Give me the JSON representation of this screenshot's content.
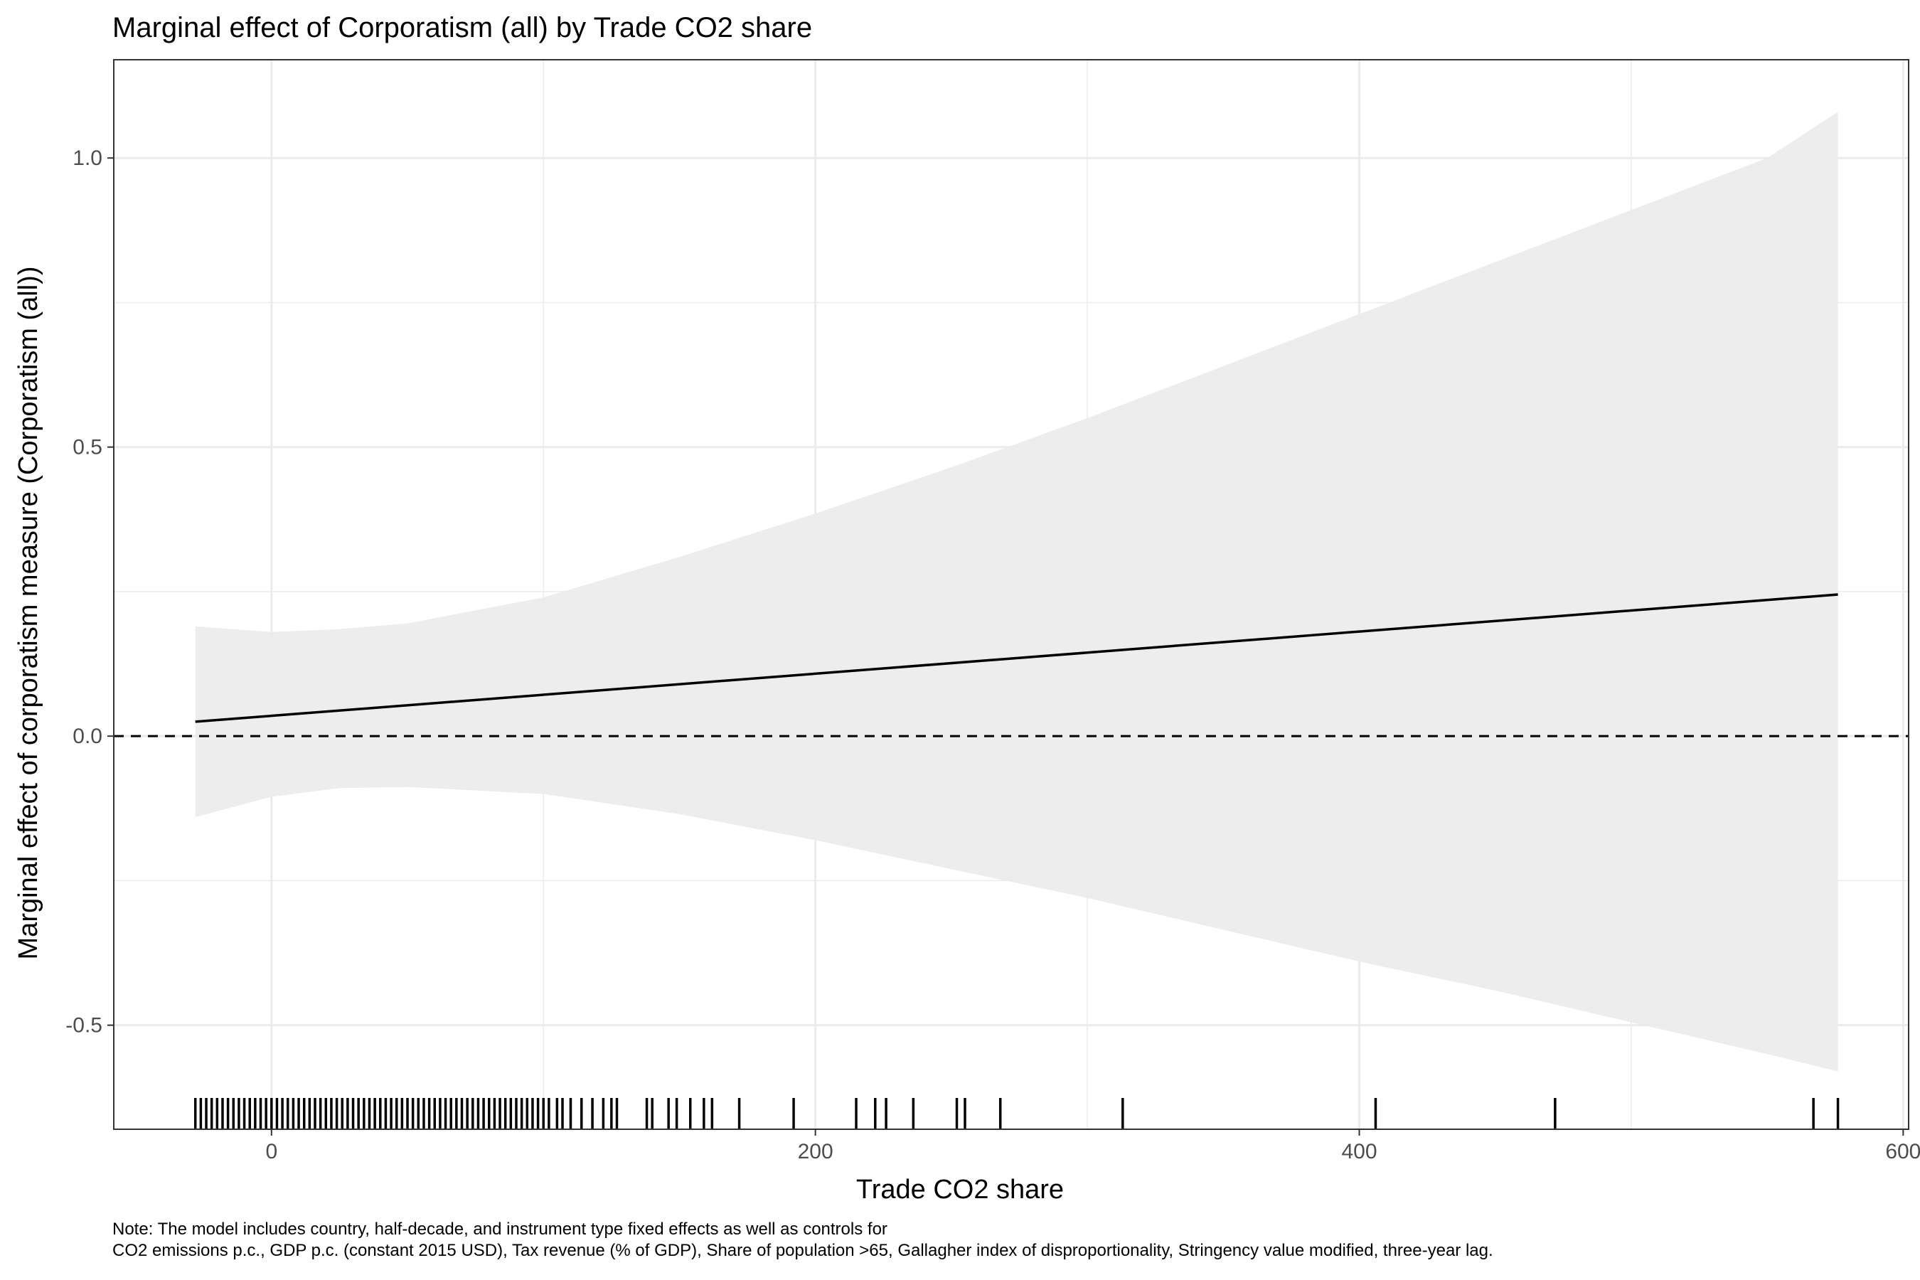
{
  "chart_data": {
    "type": "line",
    "title": "Marginal effect of Corporatism (all) by Trade CO2 share",
    "xlabel": "Trade CO2 share",
    "ylabel": "Marginal effect of corporatism measure (Corporatism (all))",
    "xlim": [
      -58,
      602
    ],
    "ylim": [
      -0.68,
      1.17
    ],
    "x_ticks": [
      0,
      200,
      400,
      600
    ],
    "x_tick_labels": [
      "0",
      "200",
      "400",
      "600"
    ],
    "y_ticks": [
      -0.5,
      0.0,
      0.5,
      1.0
    ],
    "y_tick_labels": [
      "-0.5",
      "0.0",
      "0.5",
      "1.0"
    ],
    "grid": true,
    "legend": "none",
    "reference_line": {
      "y": 0,
      "style": "dashed"
    },
    "series": [
      {
        "x": [
          -28,
          576
        ],
        "y": [
          0.025,
          0.245
        ]
      }
    ],
    "confidence_band": {
      "x": [
        -28,
        0,
        25,
        50,
        100,
        150,
        200,
        250,
        300,
        350,
        400,
        450,
        500,
        550,
        576
      ],
      "lower": [
        -0.14,
        -0.105,
        -0.09,
        -0.088,
        -0.1,
        -0.135,
        -0.18,
        -0.23,
        -0.28,
        -0.335,
        -0.39,
        -0.44,
        -0.495,
        -0.55,
        -0.58
      ],
      "upper": [
        0.19,
        0.18,
        0.185,
        0.195,
        0.24,
        0.31,
        0.385,
        0.465,
        0.55,
        0.64,
        0.73,
        0.82,
        0.91,
        1.0,
        1.08
      ]
    },
    "rug_x": [
      -28,
      -26,
      -24,
      -22,
      -20,
      -18,
      -16,
      -14,
      -12,
      -10,
      -8,
      -6,
      -4,
      -2,
      0,
      2,
      4,
      6,
      8,
      10,
      12,
      14,
      16,
      18,
      20,
      22,
      24,
      26,
      28,
      30,
      32,
      34,
      36,
      38,
      40,
      42,
      44,
      46,
      48,
      50,
      52,
      54,
      56,
      58,
      60,
      62,
      64,
      66,
      68,
      70,
      72,
      74,
      76,
      78,
      80,
      82,
      84,
      86,
      88,
      90,
      92,
      94,
      96,
      98,
      100,
      102,
      105,
      107,
      110,
      114,
      118,
      122,
      125,
      127,
      138,
      140,
      146,
      149,
      154,
      159,
      162,
      172,
      192,
      215,
      222,
      226,
      236,
      252,
      255,
      268,
      313,
      406,
      472,
      567,
      576
    ]
  },
  "note": {
    "line1": "Note: The model includes country, half-decade, and instrument type fixed effects as well as controls for",
    "line2": "CO2 emissions p.c., GDP p.c. (constant 2015 USD), Tax revenue (% of GDP), Share of population >65, Gallagher index of disproportionality, Stringency value modified, three-year lag."
  },
  "colors": {
    "band": "#ebebeb",
    "grid": "#ebebeb",
    "line": "#000000",
    "axis_text": "#4d4d4d",
    "panel_border": "#333333"
  }
}
